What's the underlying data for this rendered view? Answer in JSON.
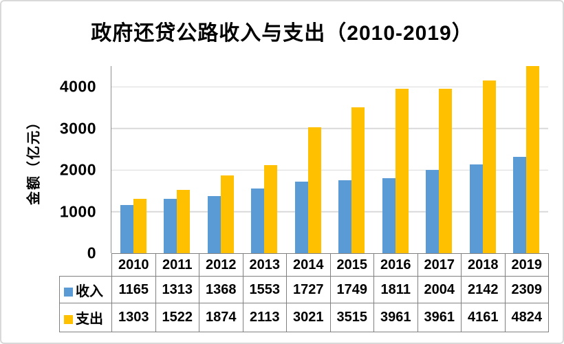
{
  "title": "政府还贷公路收入与支出（2010-2019）",
  "y_axis": {
    "label": "金额（亿元）"
  },
  "chart_data": {
    "type": "bar",
    "title": "政府还贷公路收入与支出（2010-2019）",
    "categories": [
      "2010",
      "2011",
      "2012",
      "2013",
      "2014",
      "2015",
      "2016",
      "2017",
      "2018",
      "2019"
    ],
    "series": [
      {
        "name": "收入",
        "color": "#5B9BD5",
        "values": [
          1165,
          1313,
          1368,
          1553,
          1727,
          1749,
          1811,
          2004,
          2142,
          2309
        ]
      },
      {
        "name": "支出",
        "color": "#FFC000",
        "values": [
          1303,
          1522,
          1874,
          2113,
          3021,
          3515,
          3961,
          3961,
          4161,
          4824
        ]
      }
    ],
    "xlabel": "",
    "ylabel": "金额（亿元）",
    "ylim": [
      0,
      4500
    ],
    "yticks": [
      0,
      1000,
      2000,
      3000,
      4000
    ],
    "grid": true,
    "legend_position": "table-left",
    "note_bars_clipped_at_ymax": true
  },
  "colors": {
    "income": "#5B9BD5",
    "expense": "#FFC000",
    "gridline": "#D9D9D9",
    "axis_line": "#8E8E8E",
    "table_border": "#808080",
    "canvas_border": "#D9D9D9",
    "text": "#000000",
    "background": "#FFFFFF"
  }
}
